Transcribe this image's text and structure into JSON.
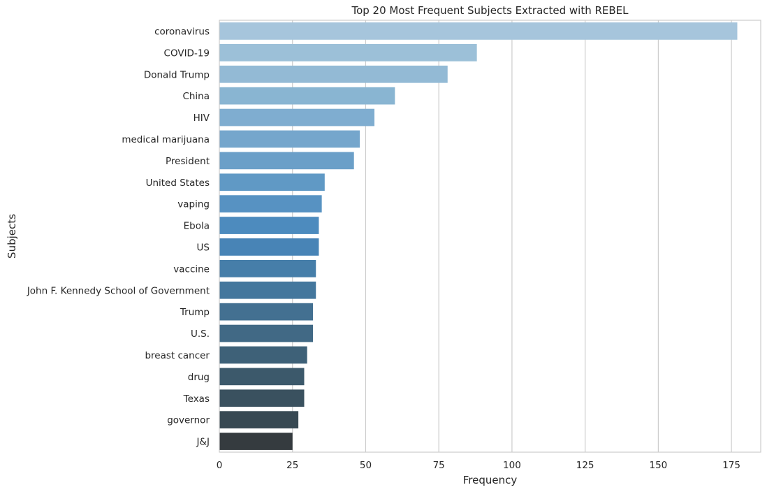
{
  "chart_data": {
    "type": "bar",
    "orientation": "horizontal",
    "title": "Top 20 Most Frequent Subjects Extracted with REBEL",
    "xlabel": "Frequency",
    "ylabel": "Subjects",
    "xlim": [
      0,
      185
    ],
    "xticks": [
      "0",
      "25",
      "50",
      "75",
      "100",
      "125",
      "150",
      "175"
    ],
    "grid": true,
    "categories": [
      "coronavirus",
      "COVID-19",
      "Donald Trump",
      "China",
      "HIV",
      "medical marijuana",
      "President",
      "United States",
      "vaping",
      "Ebola",
      "US",
      "vaccine",
      "John F. Kennedy School of Government",
      "Trump",
      "U.S.",
      "breast cancer",
      "drug",
      "Texas",
      "governor",
      "J&J"
    ],
    "values": [
      177,
      88,
      78,
      60,
      53,
      48,
      46,
      36,
      35,
      34,
      34,
      33,
      33,
      32,
      32,
      30,
      29,
      29,
      27,
      25
    ],
    "colors": [
      "#a6c5dc",
      "#9cc0d8",
      "#93bad5",
      "#89b5d2",
      "#7fadd0",
      "#75a6cc",
      "#6b9fc8",
      "#6099c5",
      "#5792c2",
      "#4d8bbe",
      "#4884b6",
      "#467ea9",
      "#44779d",
      "#437091",
      "#416985",
      "#3e6178",
      "#3c596b",
      "#3a515f",
      "#384953",
      "#353b3f"
    ]
  }
}
